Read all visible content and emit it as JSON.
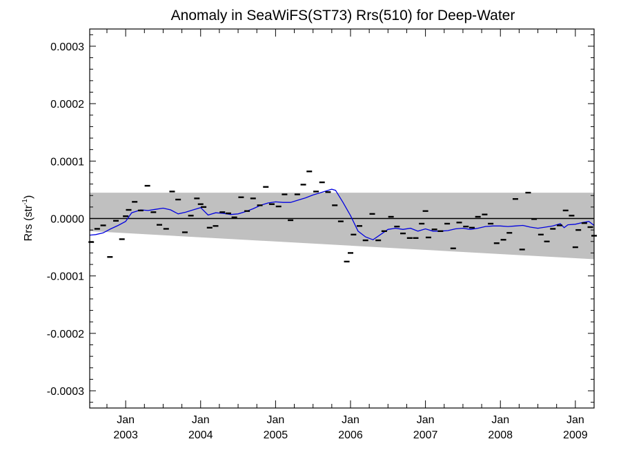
{
  "chart_data": {
    "type": "scatter",
    "title": "Anomaly in SeaWiFS(ST73) Rrs(510) for Deep-Water",
    "ylabel": "Rrs (str",
    "ylabel_sup": "-1",
    "ylabel_close": ")",
    "xlim": [
      2002.52,
      2009.25
    ],
    "ylim": [
      -0.00033,
      0.00033
    ],
    "y_ticks": [
      -0.0003,
      -0.0002,
      -0.0001,
      0.0,
      0.0001,
      0.0002,
      0.0003
    ],
    "y_tick_labels": [
      "-0.0003",
      "-0.0002",
      "-0.0001",
      "0.0000",
      "0.0001",
      "0.0002",
      "0.0003"
    ],
    "x_ticks": [
      {
        "x": 2003.0,
        "month": "Jan",
        "year": "2003"
      },
      {
        "x": 2004.0,
        "month": "Jan",
        "year": "2004"
      },
      {
        "x": 2005.0,
        "month": "Jan",
        "year": "2005"
      },
      {
        "x": 2006.0,
        "month": "Jan",
        "year": "2006"
      },
      {
        "x": 2007.0,
        "month": "Jan",
        "year": "2007"
      },
      {
        "x": 2008.0,
        "month": "Jan",
        "year": "2008"
      },
      {
        "x": 2009.0,
        "month": "Jan",
        "year": "2009"
      }
    ],
    "band": {
      "x": [
        2002.52,
        2009.25
      ],
      "upper": [
        4.5e-05,
        4.5e-05
      ],
      "lower": [
        -2.2e-05,
        -7.1e-05
      ],
      "color": "#c0c0c0"
    },
    "zero_line": 0.0,
    "series": [
      {
        "kind": "running_mean",
        "color": "#0000e0",
        "x": [
          2002.52,
          2002.6,
          2002.7,
          2002.8,
          2002.9,
          2003.0,
          2003.08,
          2003.2,
          2003.3,
          2003.4,
          2003.5,
          2003.6,
          2003.7,
          2003.8,
          2003.9,
          2004.0,
          2004.1,
          2004.2,
          2004.3,
          2004.4,
          2004.5,
          2004.6,
          2004.7,
          2004.8,
          2004.9,
          2005.0,
          2005.1,
          2005.2,
          2005.3,
          2005.4,
          2005.5,
          2005.6,
          2005.7,
          2005.75,
          2005.8,
          2005.9,
          2006.0,
          2006.1,
          2006.2,
          2006.3,
          2006.4,
          2006.5,
          2006.6,
          2006.7,
          2006.8,
          2006.9,
          2007.0,
          2007.1,
          2007.2,
          2007.3,
          2007.4,
          2007.5,
          2007.6,
          2007.7,
          2007.8,
          2007.9,
          2008.0,
          2008.1,
          2008.2,
          2008.3,
          2008.4,
          2008.5,
          2008.6,
          2008.7,
          2008.8,
          2008.85,
          2008.9,
          2009.0,
          2009.1,
          2009.18,
          2009.25
        ],
        "y": [
          -2.9e-05,
          -2.8e-05,
          -2.5e-05,
          -1.8e-05,
          -1.2e-05,
          -5e-06,
          1e-05,
          1.5e-05,
          1.4e-05,
          1.6e-05,
          1.8e-05,
          1.5e-05,
          8e-06,
          1.1e-05,
          1.5e-05,
          1.9e-05,
          6e-06,
          1e-05,
          9e-06,
          7e-06,
          8e-06,
          1.2e-05,
          1.7e-05,
          2.3e-05,
          2.7e-05,
          2.9e-05,
          2.8e-05,
          2.8e-05,
          3.2e-05,
          3.6e-05,
          4.1e-05,
          4.5e-05,
          4.9e-05,
          5.1e-05,
          4.9e-05,
          2.8e-05,
          5e-06,
          -2.2e-05,
          -3.2e-05,
          -3.7e-05,
          -2.8e-05,
          -1.9e-05,
          -1.7e-05,
          -1.9e-05,
          -1.7e-05,
          -2.2e-05,
          -1.8e-05,
          -2.2e-05,
          -2.2e-05,
          -2.1e-05,
          -1.8e-05,
          -1.7e-05,
          -1.9e-05,
          -1.7e-05,
          -1.4e-05,
          -1.3e-05,
          -1.3e-05,
          -1.4e-05,
          -1.3e-05,
          -1.2e-05,
          -1.5e-05,
          -1.7e-05,
          -1.5e-05,
          -1.3e-05,
          -9e-06,
          -1.6e-05,
          -1.1e-05,
          -1e-05,
          -7e-06,
          -5e-06,
          -1.2e-05
        ]
      },
      {
        "kind": "monthly_anomaly",
        "color": "#000000",
        "x": [
          2002.54,
          2002.62,
          2002.7,
          2002.79,
          2002.87,
          2002.95,
          2003.0,
          2003.04,
          2003.12,
          2003.2,
          2003.29,
          2003.37,
          2003.45,
          2003.54,
          2003.62,
          2003.7,
          2003.79,
          2003.87,
          2003.95,
          2004.0,
          2004.04,
          2004.12,
          2004.2,
          2004.29,
          2004.37,
          2004.45,
          2004.54,
          2004.62,
          2004.7,
          2004.79,
          2004.87,
          2004.95,
          2005.04,
          2005.12,
          2005.2,
          2005.29,
          2005.37,
          2005.45,
          2005.54,
          2005.62,
          2005.7,
          2005.79,
          2005.87,
          2005.95,
          2006.0,
          2006.04,
          2006.12,
          2006.2,
          2006.29,
          2006.37,
          2006.45,
          2006.54,
          2006.62,
          2006.7,
          2006.79,
          2006.87,
          2006.95,
          2007.0,
          2007.04,
          2007.12,
          2007.2,
          2007.29,
          2007.37,
          2007.45,
          2007.54,
          2007.62,
          2007.7,
          2007.79,
          2007.87,
          2007.95,
          2008.04,
          2008.12,
          2008.2,
          2008.29,
          2008.37,
          2008.45,
          2008.54,
          2008.62,
          2008.7,
          2008.79,
          2008.87,
          2008.95,
          2009.0,
          2009.04,
          2009.12,
          2009.2,
          2009.25
        ],
        "y": [
          -4.1e-05,
          -1.8e-05,
          -1.2e-05,
          -6.7e-05,
          -4e-06,
          -3.6e-05,
          4e-06,
          1.5e-05,
          2.9e-05,
          1.4e-05,
          5.7e-05,
          1.1e-05,
          -1.1e-05,
          -1.8e-05,
          4.7e-05,
          3.3e-05,
          -2.4e-05,
          5e-06,
          3.5e-05,
          2.5e-05,
          2e-05,
          -1.6e-05,
          -1.3e-05,
          1.1e-05,
          9e-06,
          2e-06,
          3.7e-05,
          1.3e-05,
          3.5e-05,
          2.3e-05,
          5.5e-05,
          2.5e-05,
          2.1e-05,
          4.2e-05,
          -3e-06,
          4.2e-05,
          5.9e-05,
          8.2e-05,
          4.7e-05,
          6.3e-05,
          4.6e-05,
          2.3e-05,
          -5e-06,
          -7.5e-05,
          -6e-05,
          -2.8e-05,
          -1.3e-05,
          -3.8e-05,
          8e-06,
          -3.8e-05,
          -2.2e-05,
          3e-06,
          -1.4e-05,
          -2.6e-05,
          -3.4e-05,
          -3.4e-05,
          -9e-06,
          1.3e-05,
          -3.3e-05,
          -1.9e-05,
          -2.2e-05,
          -9e-06,
          -5.2e-05,
          -7e-06,
          -1.4e-05,
          -1.6e-05,
          3e-06,
          7e-06,
          -9e-06,
          -4.3e-05,
          -3.7e-05,
          -2.5e-05,
          3.4e-05,
          -5.4e-05,
          4.5e-05,
          -1e-06,
          -2.8e-05,
          -4e-05,
          -1.8e-05,
          -1.2e-05,
          1.4e-05,
          5e-06,
          -5e-05,
          -2e-05,
          -8e-06,
          -1.5e-05,
          -3e-05
        ]
      }
    ]
  }
}
